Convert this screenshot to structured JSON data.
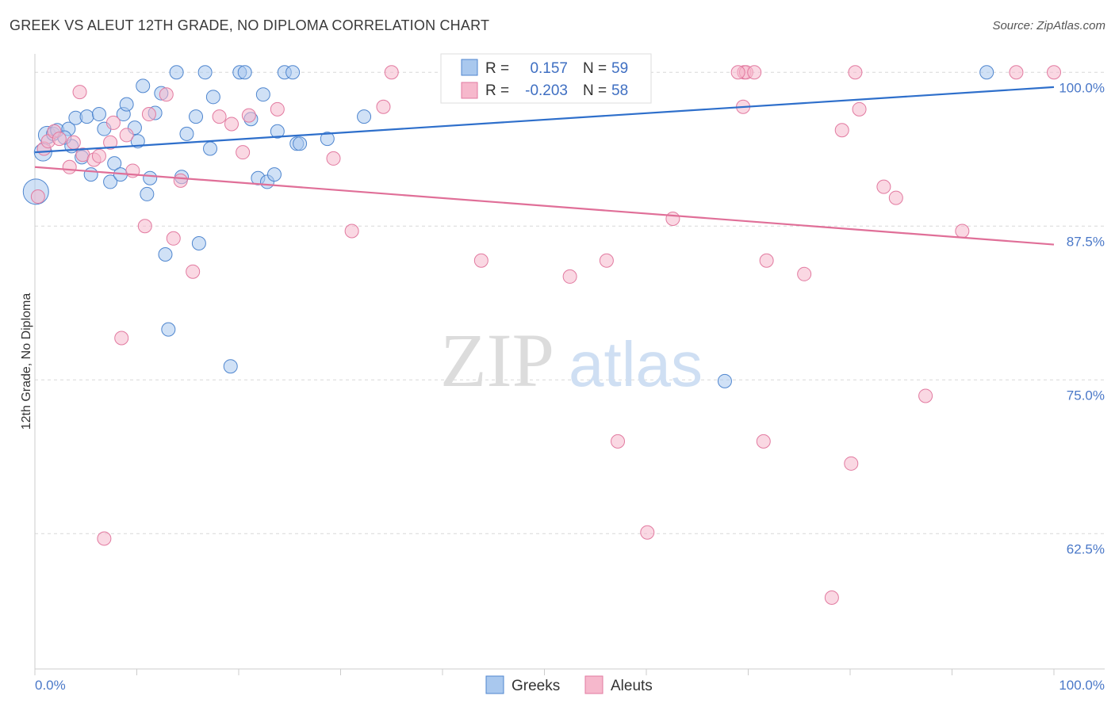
{
  "header": {
    "title": "GREEK VS ALEUT 12TH GRADE, NO DIPLOMA CORRELATION CHART",
    "source": "Source: ZipAtlas.com"
  },
  "watermark": {
    "part1": "ZIP",
    "part2": "atlas"
  },
  "colors": {
    "greeks_fill": "#a9c8ee",
    "greeks_stroke": "#4f86cf",
    "greeks_line": "#2e6fcb",
    "aleuts_fill": "#f6b8cc",
    "aleuts_stroke": "#e27aa0",
    "aleuts_line": "#e06f98",
    "grid": "#d8d8d8",
    "axis_label": "#4a78c8"
  },
  "chart_data": {
    "type": "scatter",
    "title": "GREEK VS ALEUT 12TH GRADE, NO DIPLOMA CORRELATION CHART",
    "xlabel": "",
    "ylabel": "12th Grade, No Diploma",
    "xlim": [
      0,
      100
    ],
    "ylim": [
      51.5,
      101.5
    ],
    "x_tick_labels": [
      "0.0%",
      "100.0%"
    ],
    "y_ticks": [
      100,
      87.5,
      75,
      62.5
    ],
    "y_tick_labels": [
      "100.0%",
      "87.5%",
      "75.0%",
      "62.5%"
    ],
    "grid": "horizontal dashed",
    "legend": {
      "placement": "top-center",
      "entries": [
        {
          "r_label": "R =",
          "r_value": "0.157",
          "n_label": "N =",
          "n_value": "59"
        },
        {
          "r_label": "R =",
          "r_value": "-0.203",
          "n_label": "N =",
          "n_value": "58"
        }
      ]
    },
    "series": [
      {
        "name": "Greeks",
        "trend": {
          "x": [
            0,
            100
          ],
          "y": [
            93.5,
            98.8
          ]
        },
        "points": [
          {
            "x": 0.1,
            "y": 90.3,
            "s": 3
          },
          {
            "x": 0.8,
            "y": 93.5,
            "s": 2
          },
          {
            "x": 1.2,
            "y": 94.9,
            "s": 2
          },
          {
            "x": 1.8,
            "y": 95.0
          },
          {
            "x": 2.2,
            "y": 95.3
          },
          {
            "x": 3.3,
            "y": 95.4
          },
          {
            "x": 3.6,
            "y": 94.0
          },
          {
            "x": 4.0,
            "y": 96.3
          },
          {
            "x": 4.6,
            "y": 93.1
          },
          {
            "x": 5.1,
            "y": 96.4
          },
          {
            "x": 5.5,
            "y": 91.7
          },
          {
            "x": 6.3,
            "y": 96.6
          },
          {
            "x": 6.8,
            "y": 95.4
          },
          {
            "x": 7.4,
            "y": 91.1
          },
          {
            "x": 7.8,
            "y": 92.6
          },
          {
            "x": 8.4,
            "y": 91.7
          },
          {
            "x": 8.7,
            "y": 96.6
          },
          {
            "x": 9.0,
            "y": 97.4
          },
          {
            "x": 9.8,
            "y": 95.5
          },
          {
            "x": 10.1,
            "y": 94.4
          },
          {
            "x": 10.6,
            "y": 98.9
          },
          {
            "x": 11.0,
            "y": 90.1
          },
          {
            "x": 11.3,
            "y": 91.4
          },
          {
            "x": 11.8,
            "y": 96.7
          },
          {
            "x": 12.4,
            "y": 98.3
          },
          {
            "x": 12.8,
            "y": 85.2
          },
          {
            "x": 13.1,
            "y": 79.1
          },
          {
            "x": 13.9,
            "y": 100.0
          },
          {
            "x": 14.4,
            "y": 91.5
          },
          {
            "x": 14.9,
            "y": 95.0
          },
          {
            "x": 15.8,
            "y": 96.4
          },
          {
            "x": 16.1,
            "y": 86.1
          },
          {
            "x": 16.7,
            "y": 100.0
          },
          {
            "x": 17.2,
            "y": 93.8
          },
          {
            "x": 17.5,
            "y": 98.0
          },
          {
            "x": 19.2,
            "y": 76.1
          },
          {
            "x": 20.1,
            "y": 100.0
          },
          {
            "x": 20.6,
            "y": 100.0
          },
          {
            "x": 21.2,
            "y": 96.2
          },
          {
            "x": 21.9,
            "y": 91.4
          },
          {
            "x": 22.4,
            "y": 98.2
          },
          {
            "x": 22.8,
            "y": 91.1
          },
          {
            "x": 23.5,
            "y": 91.7
          },
          {
            "x": 23.8,
            "y": 95.2
          },
          {
            "x": 24.5,
            "y": 100.0
          },
          {
            "x": 25.3,
            "y": 100.0
          },
          {
            "x": 25.7,
            "y": 94.2
          },
          {
            "x": 26.0,
            "y": 94.2
          },
          {
            "x": 28.7,
            "y": 94.6
          },
          {
            "x": 32.3,
            "y": 96.4
          },
          {
            "x": 41.2,
            "y": 100.0
          },
          {
            "x": 41.5,
            "y": 100.0
          },
          {
            "x": 50.2,
            "y": 100.0
          },
          {
            "x": 50.6,
            "y": 100.0
          },
          {
            "x": 50.9,
            "y": 100.0
          },
          {
            "x": 56.4,
            "y": 100.0
          },
          {
            "x": 67.7,
            "y": 74.9
          },
          {
            "x": 93.4,
            "y": 100.0
          },
          {
            "x": 2.9,
            "y": 94.7
          }
        ]
      },
      {
        "name": "Aleuts",
        "trend": {
          "x": [
            0,
            100
          ],
          "y": [
            92.3,
            86.0
          ]
        },
        "points": [
          {
            "x": 0.3,
            "y": 89.9
          },
          {
            "x": 0.9,
            "y": 93.8
          },
          {
            "x": 1.3,
            "y": 94.4
          },
          {
            "x": 1.9,
            "y": 95.2
          },
          {
            "x": 2.4,
            "y": 94.6
          },
          {
            "x": 3.4,
            "y": 92.3
          },
          {
            "x": 3.8,
            "y": 94.3
          },
          {
            "x": 4.4,
            "y": 98.4
          },
          {
            "x": 4.7,
            "y": 93.3
          },
          {
            "x": 5.8,
            "y": 92.9
          },
          {
            "x": 6.3,
            "y": 93.2
          },
          {
            "x": 6.8,
            "y": 62.1
          },
          {
            "x": 7.4,
            "y": 94.3
          },
          {
            "x": 7.7,
            "y": 95.9
          },
          {
            "x": 8.5,
            "y": 78.4
          },
          {
            "x": 9.0,
            "y": 94.9
          },
          {
            "x": 9.6,
            "y": 92.0
          },
          {
            "x": 10.8,
            "y": 87.5
          },
          {
            "x": 11.2,
            "y": 96.6
          },
          {
            "x": 12.9,
            "y": 98.2
          },
          {
            "x": 13.6,
            "y": 86.5
          },
          {
            "x": 14.3,
            "y": 91.2
          },
          {
            "x": 15.5,
            "y": 83.8
          },
          {
            "x": 18.1,
            "y": 96.4
          },
          {
            "x": 19.3,
            "y": 95.8
          },
          {
            "x": 20.4,
            "y": 93.5
          },
          {
            "x": 21.0,
            "y": 96.5
          },
          {
            "x": 23.8,
            "y": 97.0
          },
          {
            "x": 29.3,
            "y": 93.0
          },
          {
            "x": 31.1,
            "y": 87.1
          },
          {
            "x": 34.2,
            "y": 97.2
          },
          {
            "x": 35.0,
            "y": 100.0
          },
          {
            "x": 43.8,
            "y": 84.7
          },
          {
            "x": 47.3,
            "y": 100.0
          },
          {
            "x": 52.5,
            "y": 83.4
          },
          {
            "x": 56.1,
            "y": 84.7
          },
          {
            "x": 57.2,
            "y": 70.0
          },
          {
            "x": 60.1,
            "y": 62.6
          },
          {
            "x": 62.6,
            "y": 88.1
          },
          {
            "x": 69.6,
            "y": 100.0
          },
          {
            "x": 69.8,
            "y": 100.0
          },
          {
            "x": 69.0,
            "y": 100.0
          },
          {
            "x": 69.5,
            "y": 97.2
          },
          {
            "x": 70.6,
            "y": 100.0
          },
          {
            "x": 71.5,
            "y": 70.0
          },
          {
            "x": 71.8,
            "y": 84.7
          },
          {
            "x": 75.5,
            "y": 83.6
          },
          {
            "x": 78.2,
            "y": 57.3
          },
          {
            "x": 79.2,
            "y": 95.3
          },
          {
            "x": 80.1,
            "y": 68.2
          },
          {
            "x": 80.5,
            "y": 100.0
          },
          {
            "x": 80.9,
            "y": 97.0
          },
          {
            "x": 83.3,
            "y": 90.7
          },
          {
            "x": 84.5,
            "y": 89.8
          },
          {
            "x": 87.4,
            "y": 73.7
          },
          {
            "x": 91.0,
            "y": 87.1
          },
          {
            "x": 96.3,
            "y": 100.0
          },
          {
            "x": 100.0,
            "y": 100.0
          }
        ]
      }
    ]
  },
  "bottom_legend": [
    {
      "label": "Greeks"
    },
    {
      "label": "Aleuts"
    }
  ]
}
